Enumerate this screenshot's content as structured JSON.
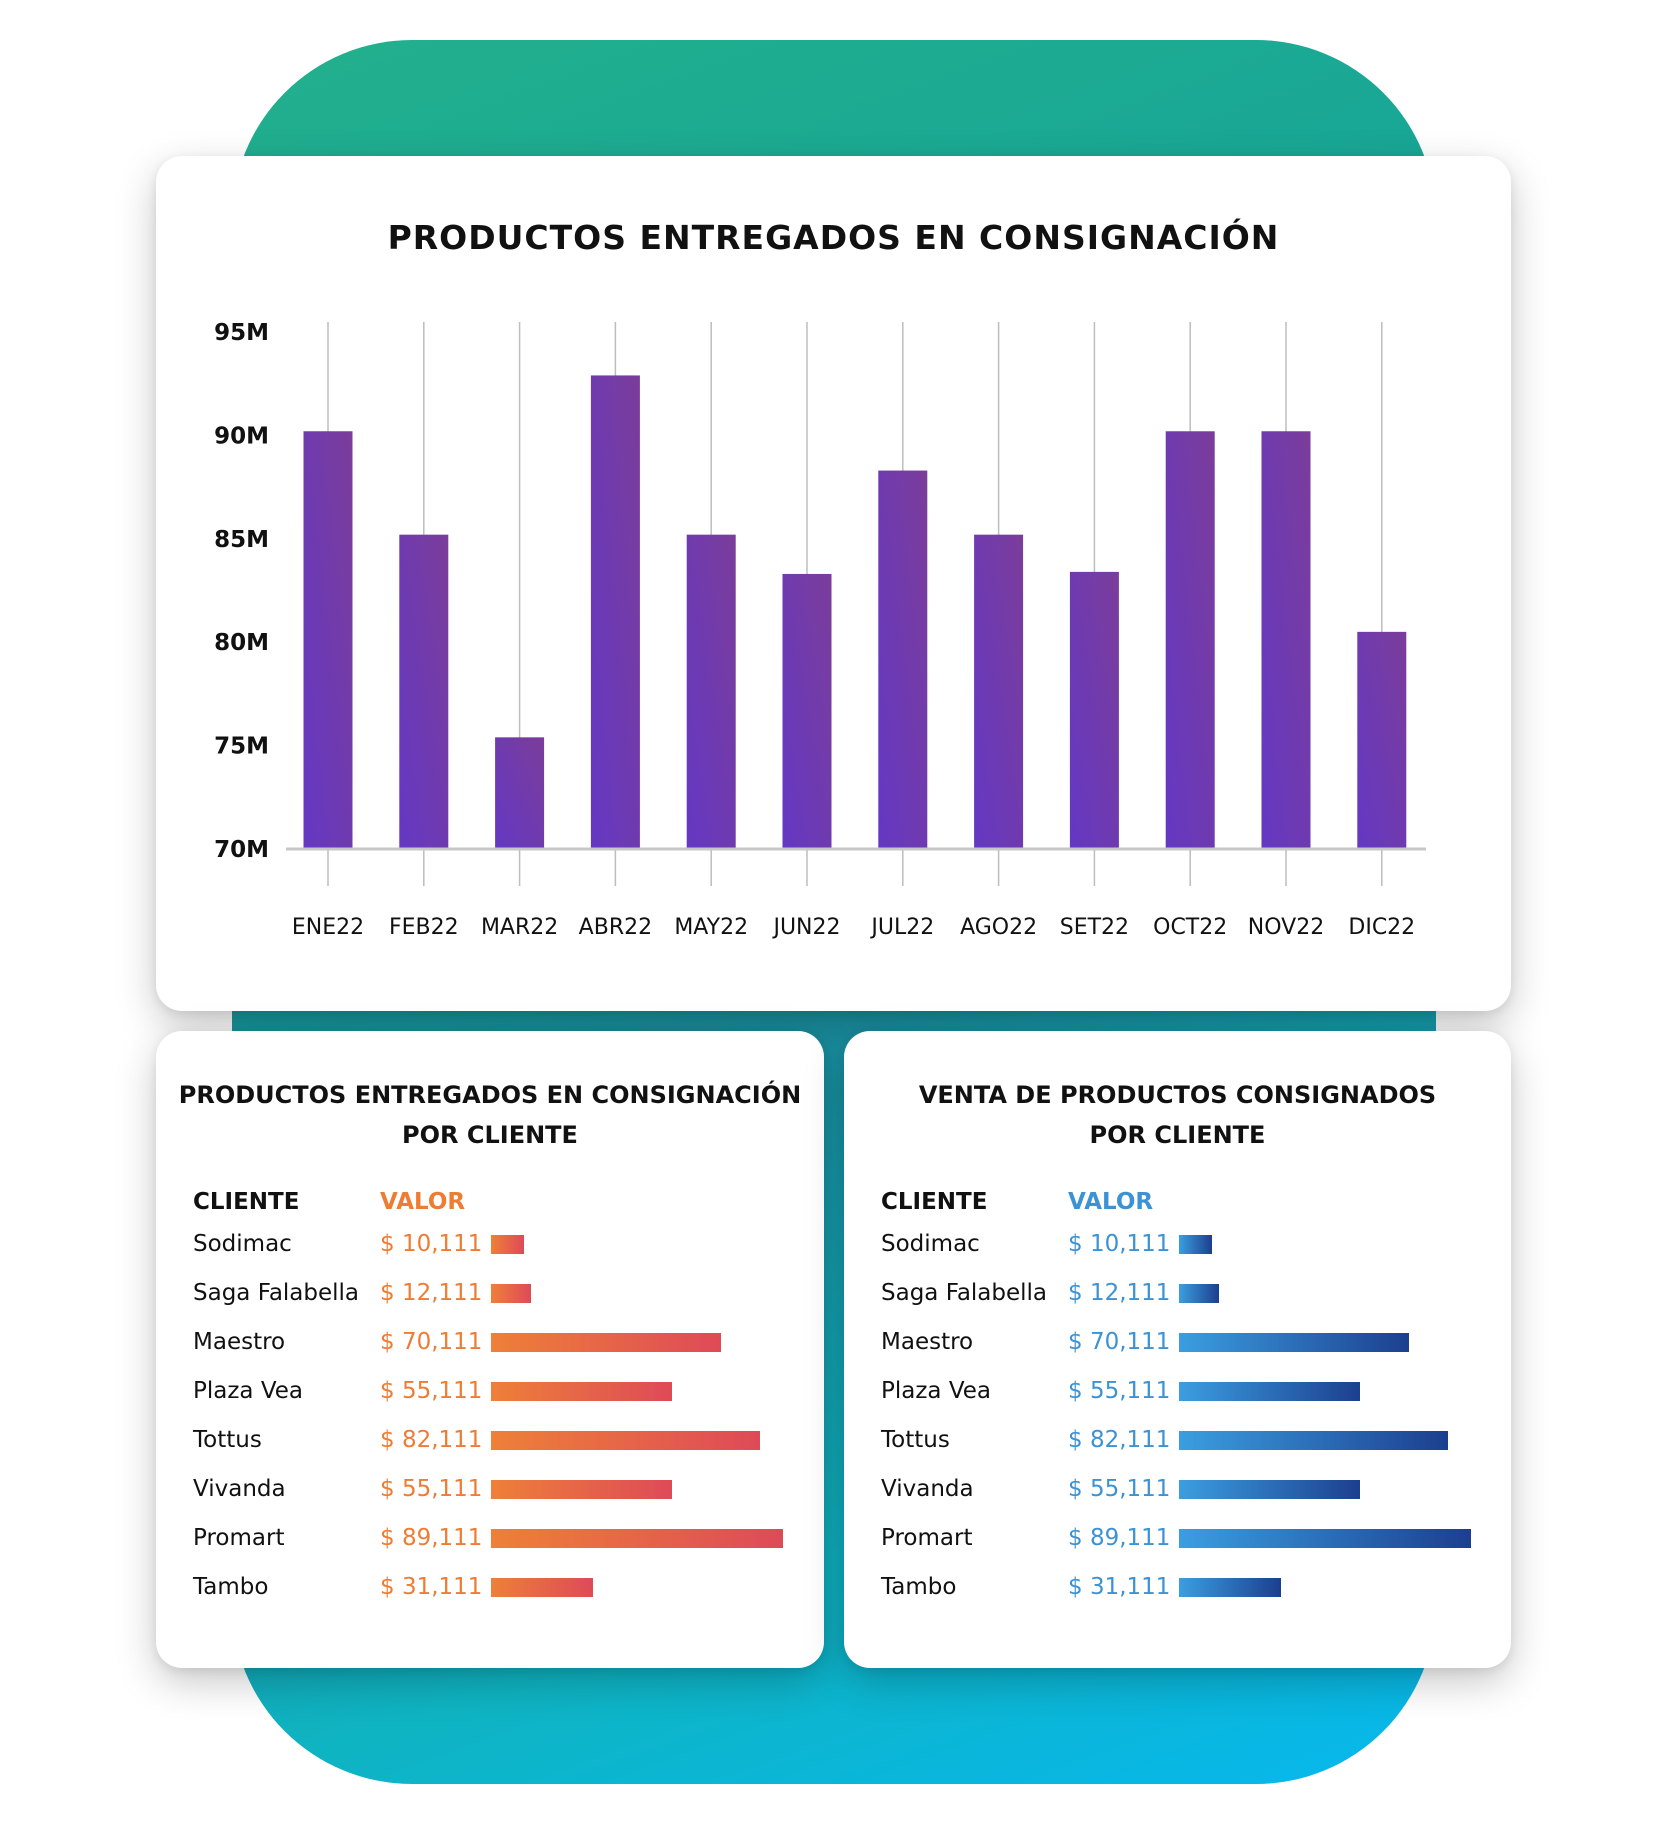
{
  "colors": {
    "background_gradient": [
      "#22b08d",
      "#06b8ee"
    ],
    "bar_gradient": [
      "#6438c4",
      "#7b3d9a"
    ],
    "orange_accent": "#ee7c33",
    "orange_bar_gradient": [
      "#ee8038",
      "#de4a58"
    ],
    "blue_accent": "#3b92d4",
    "blue_bar_gradient": [
      "#3b9ee0",
      "#1c3f8f"
    ]
  },
  "chart_data": [
    {
      "type": "bar",
      "title": "PRODUCTOS ENTREGADOS EN CONSIGNACIÓN",
      "categories": [
        "ENE22",
        "FEB22",
        "MAR22",
        "ABR22",
        "MAY22",
        "JUN22",
        "JUL22",
        "AGO22",
        "SET22",
        "OCT22",
        "NOV22",
        "DIC22"
      ],
      "values": [
        90.2,
        85.2,
        75.4,
        92.9,
        85.2,
        83.3,
        88.3,
        85.2,
        83.4,
        90.2,
        90.2,
        80.5
      ],
      "yticks": [
        "95M",
        "90M",
        "85M",
        "80M",
        "75M",
        "70M"
      ],
      "ylim": [
        70,
        95
      ],
      "units": "M",
      "grid": "vertical"
    },
    {
      "type": "bar",
      "orientation": "horizontal",
      "title": "PRODUCTOS ENTREGADOS EN CONSIGNACIÓN POR CLIENTE",
      "title_lines": [
        "PRODUCTOS ENTREGADOS EN CONSIGNACIÓN",
        "POR CLIENTE"
      ],
      "col_client": "CLIENTE",
      "col_value": "VALOR",
      "rows": [
        {
          "client": "Sodimac",
          "label": "$ 10,111",
          "value": 10111
        },
        {
          "client": "Saga Falabella",
          "label": "$ 12,111",
          "value": 12111
        },
        {
          "client": "Maestro",
          "label": "$ 70,111",
          "value": 70111
        },
        {
          "client": "Plaza Vea",
          "label": "$ 55,111",
          "value": 55111
        },
        {
          "client": "Tottus",
          "label": "$ 82,111",
          "value": 82111
        },
        {
          "client": "Vivanda",
          "label": "$ 55,111",
          "value": 55111
        },
        {
          "client": "Promart",
          "label": "$ 89,111",
          "value": 89111
        },
        {
          "client": "Tambo",
          "label": "$ 31,111",
          "value": 31111
        }
      ]
    },
    {
      "type": "bar",
      "orientation": "horizontal",
      "title": "VENTA DE PRODUCTOS CONSIGNADOS POR CLIENTE",
      "title_lines": [
        "VENTA DE PRODUCTOS CONSIGNADOS",
        "POR CLIENTE"
      ],
      "col_client": "CLIENTE",
      "col_value": "VALOR",
      "rows": [
        {
          "client": "Sodimac",
          "label": "$ 10,111",
          "value": 10111
        },
        {
          "client": "Saga Falabella",
          "label": "$ 12,111",
          "value": 12111
        },
        {
          "client": "Maestro",
          "label": "$ 70,111",
          "value": 70111
        },
        {
          "client": "Plaza Vea",
          "label": "$ 55,111",
          "value": 55111
        },
        {
          "client": "Tottus",
          "label": "$ 82,111",
          "value": 82111
        },
        {
          "client": "Vivanda",
          "label": "$ 55,111",
          "value": 55111
        },
        {
          "client": "Promart",
          "label": "$ 89,111",
          "value": 89111
        },
        {
          "client": "Tambo",
          "label": "$ 31,111",
          "value": 31111
        }
      ]
    }
  ]
}
